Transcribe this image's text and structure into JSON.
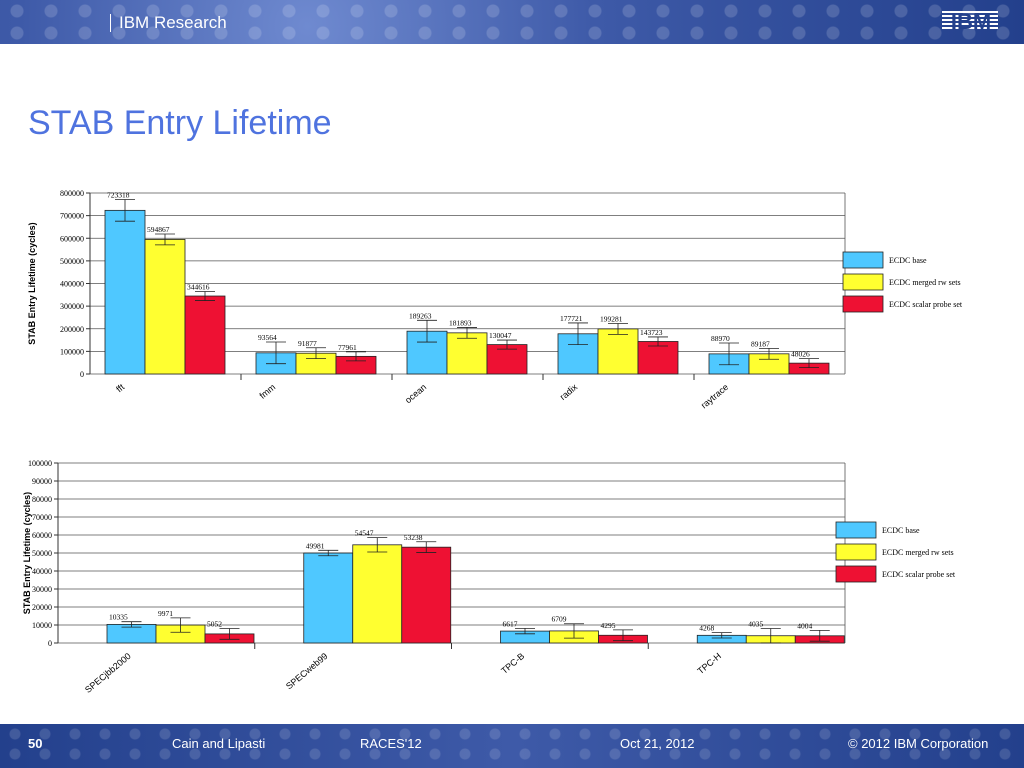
{
  "header": {
    "brand": "IBM Research",
    "logo": "IBM"
  },
  "slide": {
    "title": "STAB Entry Lifetime"
  },
  "footer": {
    "page": "50",
    "authors": "Cain and Lipasti",
    "venue": "RACES'12",
    "date": "Oct 21, 2012",
    "copyright": "© 2012 IBM Corporation"
  },
  "colors": {
    "base": "#4fc8ff",
    "merged": "#ffff30",
    "scalar": "#ee1133"
  },
  "chart_data": [
    {
      "type": "bar",
      "ylabel": "STAB Entry Lifetime (cycles)",
      "ylim": [
        0,
        800000
      ],
      "yticks": [
        "0",
        "100000",
        "200000",
        "300000",
        "400000",
        "500000",
        "600000",
        "700000",
        "800000"
      ],
      "categories": [
        "fft",
        "fmm",
        "ocean",
        "radix",
        "raytrace"
      ],
      "series": [
        {
          "name": "ECDC base",
          "values": [
            723318,
            93564,
            189263,
            177721,
            88970
          ],
          "labels": [
            "723318",
            "93564",
            "189263",
            "177721",
            "88970"
          ]
        },
        {
          "name": "ECDC merged rw sets",
          "values": [
            594867,
            91877,
            181893,
            199281,
            89187
          ],
          "labels": [
            "594867",
            "91877",
            "181893",
            "199281",
            "89187"
          ]
        },
        {
          "name": "ECDC scalar probe set",
          "values": [
            344616,
            77961,
            130047,
            143723,
            48026
          ],
          "labels": [
            "344616",
            "77961",
            "130047",
            "143723",
            "48026"
          ]
        }
      ],
      "legend": "right"
    },
    {
      "type": "bar",
      "ylabel": "STAB Entry Lifetime (cycles)",
      "ylim": [
        0,
        100000
      ],
      "yticks": [
        "0",
        "10000",
        "20000",
        "30000",
        "40000",
        "50000",
        "60000",
        "70000",
        "80000",
        "90000",
        "100000"
      ],
      "categories": [
        "SPECjbb2000",
        "SPECweb99",
        "TPC-B",
        "TPC-H"
      ],
      "series": [
        {
          "name": "ECDC base",
          "values": [
            10335,
            49981,
            6617,
            4268
          ],
          "labels": [
            "10335",
            "49981",
            "6617",
            "4268"
          ]
        },
        {
          "name": "ECDC merged rw sets",
          "values": [
            9971,
            54547,
            6709,
            4035
          ],
          "labels": [
            "9971",
            "54547",
            "6709",
            "4035"
          ]
        },
        {
          "name": "ECDC scalar probe set",
          "values": [
            5052,
            53238,
            4295,
            4004
          ],
          "labels": [
            "5052",
            "53238",
            "4295",
            "4004"
          ]
        }
      ],
      "legend": "right"
    }
  ]
}
